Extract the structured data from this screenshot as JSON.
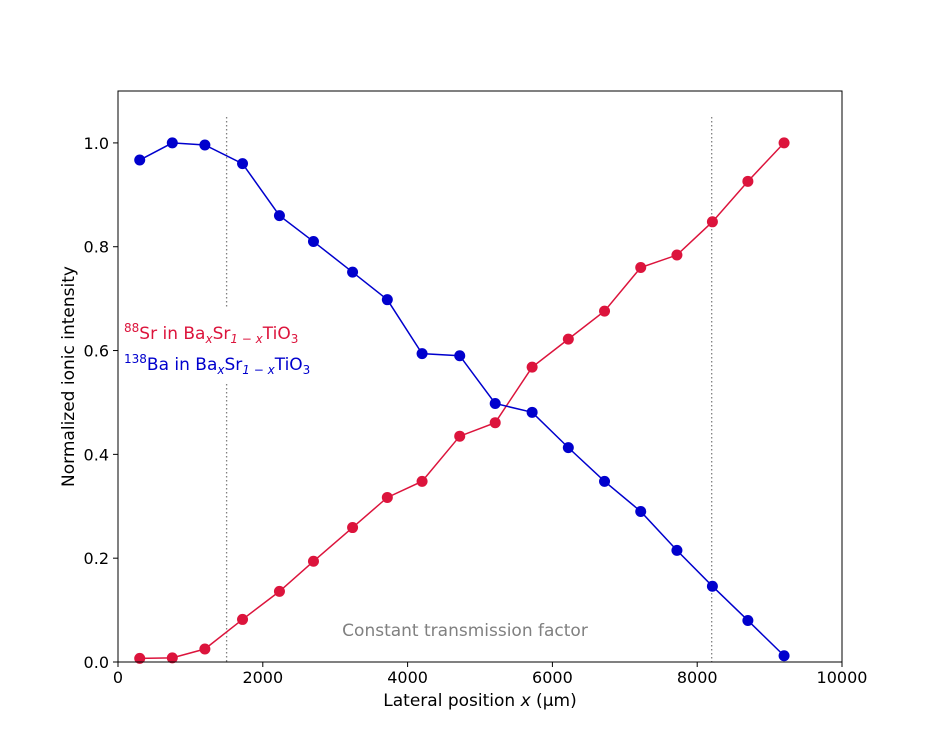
{
  "chart_data": {
    "type": "line",
    "xlabel_prefix": "Lateral position ",
    "xlabel_var": "x",
    "xlabel_suffix": " (µm)",
    "ylabel": "Normalized ionic intensity",
    "xlim": [
      0,
      10000
    ],
    "ylim": [
      0,
      1.1
    ],
    "x_ticks": [
      0,
      2000,
      4000,
      6000,
      8000,
      10000
    ],
    "y_ticks": [
      0.0,
      0.2,
      0.4,
      0.6,
      0.8,
      1.0
    ],
    "x_tick_labels": [
      "0",
      "2000",
      "4000",
      "6000",
      "8000",
      "10000"
    ],
    "y_tick_labels": [
      "0.0",
      "0.2",
      "0.4",
      "0.6",
      "0.8",
      "1.0"
    ],
    "grid": false,
    "legend_placement": "left",
    "series": [
      {
        "name": "88Sr in BaxSr1−xTiO3",
        "label": {
          "sup": "88",
          "el": "Sr",
          "mid": " in Ba",
          "sub1": "x",
          "mid2": "Sr",
          "sub2": "1 − x",
          "mid3": "TiO",
          "sub3": "3"
        },
        "color": "#dc143c",
        "x": [
          300,
          750,
          1200,
          1720,
          2230,
          2700,
          3240,
          3720,
          4200,
          4720,
          5210,
          5720,
          6220,
          6720,
          7220,
          7720,
          8210,
          8700,
          9200
        ],
        "y": [
          0.007,
          0.008,
          0.025,
          0.082,
          0.136,
          0.194,
          0.259,
          0.317,
          0.348,
          0.435,
          0.461,
          0.568,
          0.622,
          0.676,
          0.76,
          0.784,
          0.848,
          0.926,
          1.0
        ]
      },
      {
        "name": "138Ba in BaxSr1−xTiO3",
        "label": {
          "sup": "138",
          "el": "Ba",
          "mid": " in Ba",
          "sub1": "x",
          "mid2": "Sr",
          "sub2": "1 − x",
          "mid3": "TiO",
          "sub3": "3"
        },
        "color": "#0000cd",
        "x": [
          300,
          750,
          1200,
          1720,
          2230,
          2700,
          3240,
          3720,
          4200,
          4720,
          5210,
          5720,
          6220,
          6720,
          7220,
          7720,
          8210,
          8700,
          9200
        ],
        "y": [
          0.967,
          1.0,
          0.996,
          0.96,
          0.86,
          0.81,
          0.751,
          0.698,
          0.594,
          0.59,
          0.498,
          0.481,
          0.413,
          0.348,
          0.29,
          0.215,
          0.146,
          0.08,
          0.012
        ]
      }
    ],
    "vertical_lines": [
      1500,
      8200
    ],
    "annotation": "Constant transmission factor",
    "annotation_color": "#808080"
  }
}
